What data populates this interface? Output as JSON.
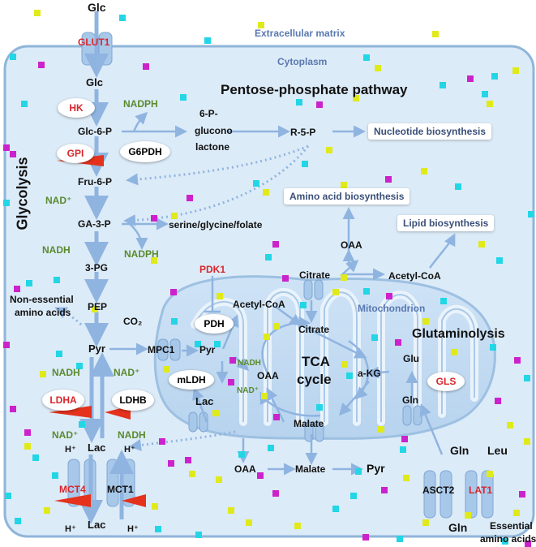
{
  "regions": {
    "extracellular": "Extracellular matrix",
    "cytoplasm": "Cytoplasm",
    "mitochondrion": "Mitochondrion"
  },
  "pathways": {
    "glycolysis": "Glycolysis",
    "pentose_phosphate": "Pentose-phosphate pathway",
    "glutaminolysis": "Glutaminolysis",
    "tca_line1": "TCA",
    "tca_line2": "cycle"
  },
  "transporters": {
    "glut1": "GLUT1",
    "mct4": "MCT4",
    "mct1": "MCT1",
    "asct2": "ASCT2",
    "lat1": "LAT1",
    "mpc1": "MPC1"
  },
  "enzymes": {
    "hk": "HK",
    "gpi": "GPI",
    "g6pdh": "G6PDH",
    "ldha": "LDHA",
    "ldhb": "LDHB",
    "pdk1": "PDK1",
    "pdh": "PDH",
    "mldh": "mLDH",
    "gls": "GLS"
  },
  "metabolites": {
    "glc_out": "Glc",
    "glc_in": "Glc",
    "glc6p": "Glc-6-P",
    "fru6p": "Fru-6-P",
    "ga3p": "GA-3-P",
    "pg3": "3-PG",
    "pep": "PEP",
    "pyr": "Pyr",
    "lac": "Lac",
    "lac_out": "Lac",
    "gluconolactone_1": "6-P-",
    "gluconolactone_2": "glucono",
    "gluconolactone_3": "lactone",
    "r5p": "R-5-P",
    "serine": "serine/glycine/folate",
    "co2": "CO₂",
    "acetylcoa_mito": "Acetyl-CoA",
    "acetylcoa_cyto": "Acetyl-CoA",
    "citrate_mito": "Citrate",
    "citrate_cyto": "Citrate",
    "pyr_mito": "Pyr",
    "lac_mito": "Lac",
    "oaa_mito": "OAA",
    "oaa_cyto_top": "OAA",
    "oaa_cyto_bottom": "OAA",
    "akg": "a-KG",
    "glu": "Glu",
    "gln_mito": "Gln",
    "gln_cyto": "Gln",
    "gln_out": "Gln",
    "leu": "Leu",
    "malate_mito": "Malate",
    "malate_cyto": "Malate",
    "pyr_cyto_bottom": "Pyr",
    "nonessential_1": "Non-essential",
    "nonessential_2": "amino acids",
    "essential_1": "Essential",
    "essential_2": "amino acids"
  },
  "cofactors": {
    "nadph_1": "NADPH",
    "nadph_2": "NADPH",
    "nad_1": "NAD⁺",
    "nadh_1": "NADH",
    "nadh_2": "NADH",
    "nad_2": "NAD⁺",
    "nad_3": "NAD⁺",
    "nadh_3": "NADH",
    "nadh_mito": "NADH",
    "nad_mito": "NAD⁺",
    "h_1": "H⁺",
    "h_2": "H⁺",
    "h_3": "H⁺",
    "h_4": "H⁺"
  },
  "outputs": {
    "nucleotide": "Nucleotide biosynthesis",
    "amino_acid": "Amino acid biosynthesis",
    "lipid": "Lipid biosynthesis"
  },
  "colors": {
    "cell_fill": "#dcebf8",
    "cell_border": "#8fb5d9",
    "arrow": "#8fb4e0",
    "enzyme_red": "#d9262b",
    "cofactor_green": "#5a8a2e",
    "label_blue": "#5a78b0",
    "dot_magenta": "#cc22cc",
    "dot_cyan": "#22d6e6",
    "dot_yellow": "#e0ea1a"
  }
}
